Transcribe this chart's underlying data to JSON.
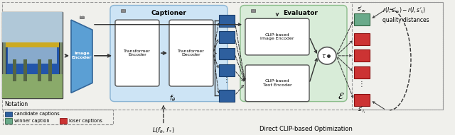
{
  "fig_width": 6.4,
  "fig_height": 1.91,
  "dpi": 100,
  "bg_color": "#f0f0ec",
  "blue_sq_color": "#2e5f9e",
  "green_sq_color": "#6aaa8a",
  "red_sq_color": "#cc3333",
  "arrow_color": "#333333",
  "captioner_bg": "#cde4f5",
  "evaluator_bg": "#d8ecd8",
  "img_enc_color": "#5b9fd4",
  "white_box": "#ffffff",
  "lock_color": "#666666",
  "notation_positions": {
    "blue_sq": [
      0.022,
      0.47
    ],
    "green_sq": [
      0.022,
      0.25
    ],
    "red_sq": [
      0.115,
      0.25
    ]
  }
}
